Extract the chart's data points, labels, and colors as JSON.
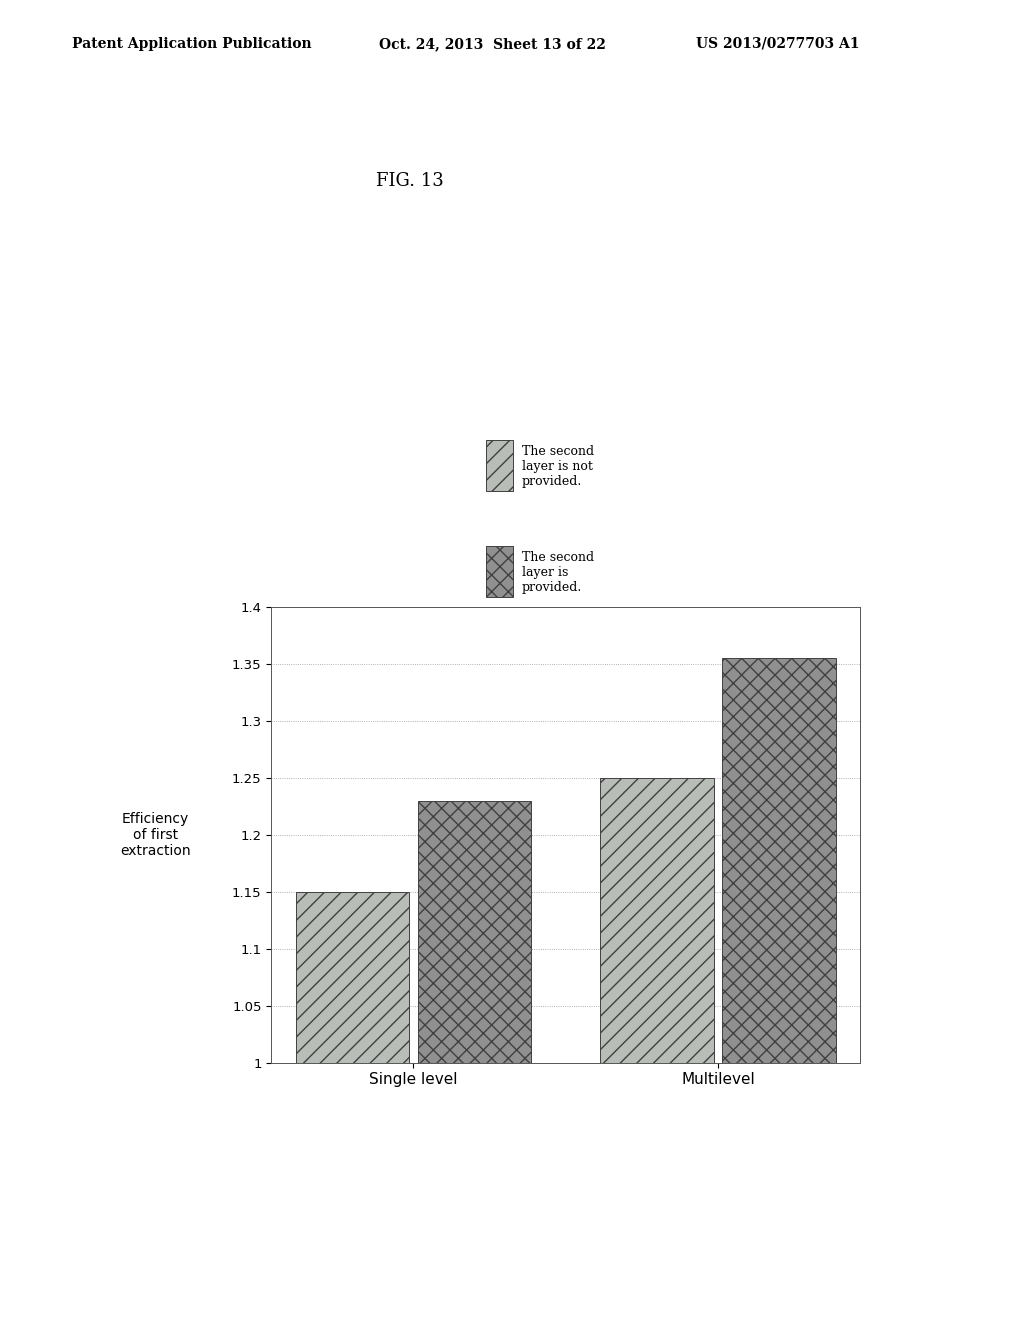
{
  "title": "FIG. 13",
  "header_left": "Patent Application Publication",
  "header_center": "Oct. 24, 2013  Sheet 13 of 22",
  "header_right": "US 2013/0277703 A1",
  "categories": [
    "Single level",
    "Multilevel"
  ],
  "series1_label": "The second\nlayer is not\nprovided.",
  "series2_label": "The second\nlayer is\nprovided.",
  "series1_values": [
    1.15,
    1.25
  ],
  "series2_values": [
    1.23,
    1.355
  ],
  "ylabel": "Efficiency\nof first\nextraction",
  "ylim": [
    1.0,
    1.4
  ],
  "yticks": [
    1.0,
    1.05,
    1.1,
    1.15,
    1.2,
    1.25,
    1.3,
    1.35,
    1.4
  ],
  "ytick_labels": [
    "1",
    "1.05",
    "1.1",
    "1.15",
    "1.2",
    "1.25",
    "1.3",
    "1.35",
    "1.4"
  ],
  "bar_width": 0.28,
  "color1": "#b0b8b0",
  "color2": "#909090",
  "background_color": "#ffffff",
  "fig_width": 10.24,
  "fig_height": 13.2,
  "dpi": 100
}
